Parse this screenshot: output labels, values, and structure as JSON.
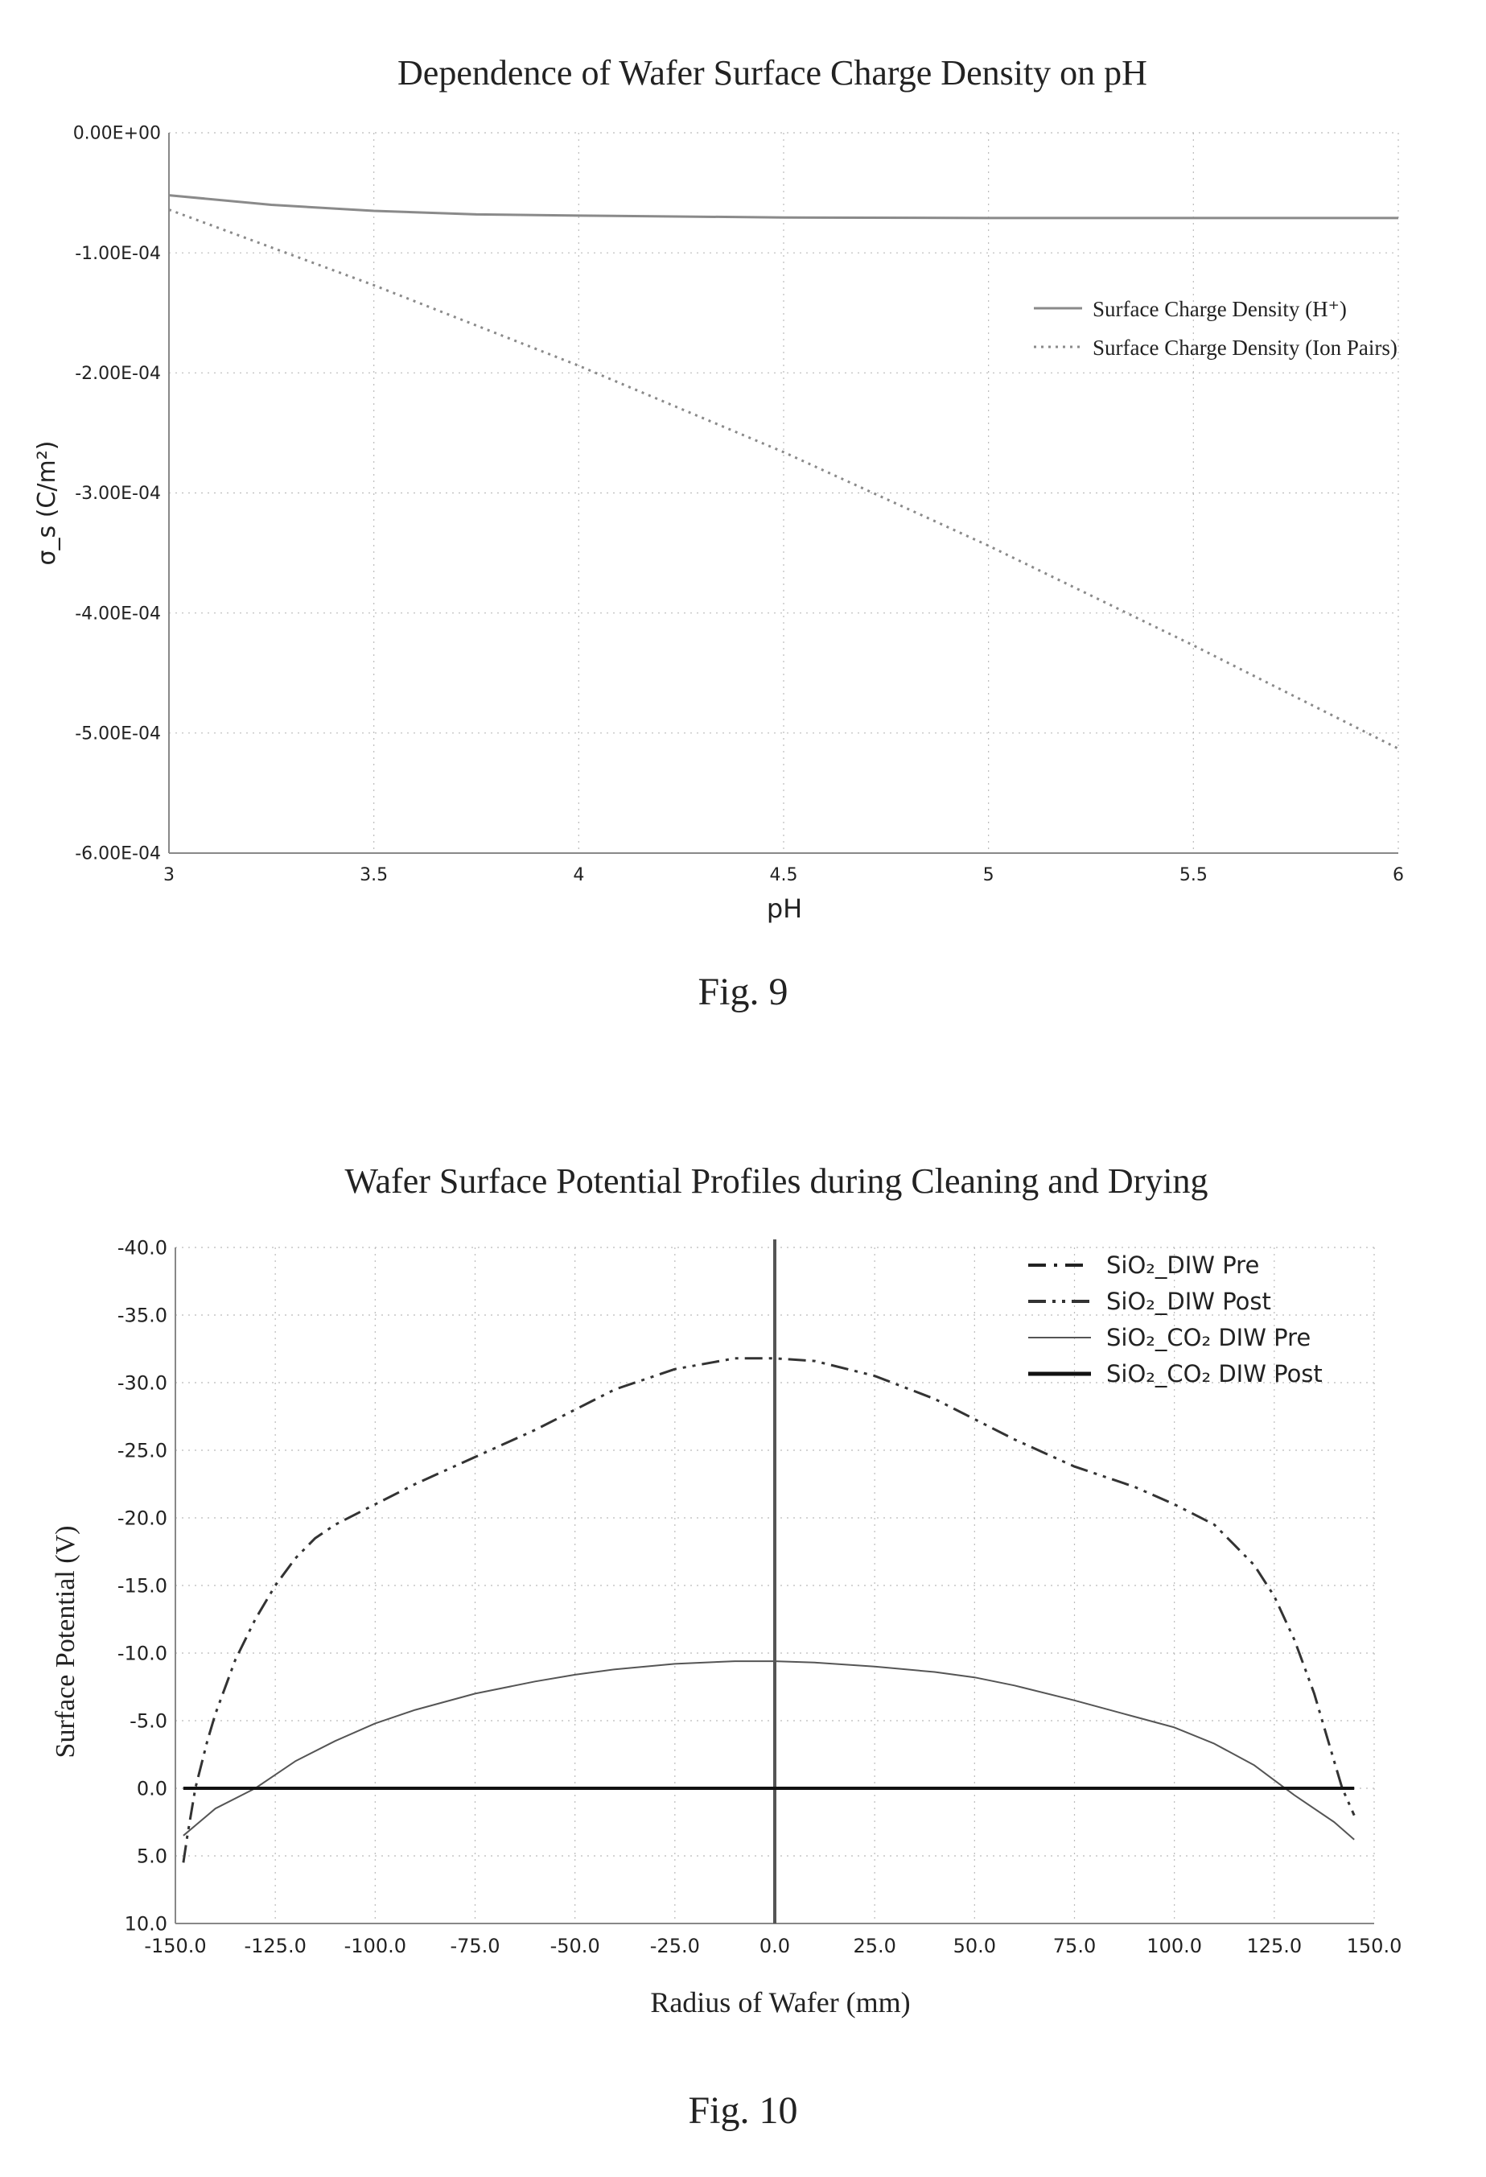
{
  "figures": [
    {
      "caption": "Fig. 9",
      "chart_data": {
        "type": "line",
        "title": "Dependence of Wafer Surface Charge Density on pH",
        "xlabel": "pH",
        "ylabel": "σ_s (C/m²)",
        "xlim": [
          3,
          6
        ],
        "ylim": [
          -0.0006,
          0
        ],
        "x_ticks": [
          "3",
          "3.5",
          "4",
          "4.5",
          "5",
          "5.5",
          "6"
        ],
        "y_ticks": [
          "0.00E+00",
          "-1.00E-04",
          "-2.00E-04",
          "-3.00E-04",
          "-4.00E-04",
          "-5.00E-04",
          "-6.00E-04"
        ],
        "y_tick_values": [
          0,
          -0.0001,
          -0.0002,
          -0.0003,
          -0.0004,
          -0.0005,
          -0.0006
        ],
        "grid": true,
        "legend_position": "right",
        "series": [
          {
            "name": "Surface Charge Density (H⁺)",
            "style": "solid",
            "color": "#8a8a8a",
            "x": [
              3,
              3.25,
              3.5,
              3.75,
              4,
              4.5,
              5,
              5.5,
              6
            ],
            "y": [
              -5.2e-05,
              -6e-05,
              -6.5e-05,
              -6.8e-05,
              -6.9e-05,
              -7.05e-05,
              -7.1e-05,
              -7.1e-05,
              -7.1e-05
            ]
          },
          {
            "name": "Surface Charge Density (Ion Pairs)",
            "style": "dotted",
            "color": "#8a8a8a",
            "x": [
              3,
              3.5,
              4,
              4.5,
              5,
              5.5,
              6
            ],
            "y": [
              -6.4e-05,
              -0.000127,
              -0.000194,
              -0.000266,
              -0.000344,
              -0.000427,
              -0.000513
            ]
          }
        ]
      }
    },
    {
      "caption": "Fig. 10",
      "chart_data": {
        "type": "line",
        "title": "Wafer Surface Potential Profiles during Cleaning and Drying",
        "xlabel": "Radius of Wafer (mm)",
        "ylabel": "Surface Potential (V)",
        "xlim": [
          -150,
          150
        ],
        "ylim": [
          10,
          -40
        ],
        "y_inverted": true,
        "x_ticks": [
          "-150.0",
          "-125.0",
          "-100.0",
          "-75.0",
          "-50.0",
          "-25.0",
          "0.0",
          "25.0",
          "50.0",
          "75.0",
          "100.0",
          "125.0",
          "150.0"
        ],
        "x_tick_values": [
          -150,
          -125,
          -100,
          -75,
          -50,
          -25,
          0,
          25,
          50,
          75,
          100,
          125,
          150
        ],
        "y_ticks": [
          "-40.0",
          "-35.0",
          "-30.0",
          "-25.0",
          "-20.0",
          "-15.0",
          "-10.0",
          "-5.0",
          "0.0",
          "5.0",
          "10.0"
        ],
        "y_tick_values": [
          -40,
          -35,
          -30,
          -25,
          -20,
          -15,
          -10,
          -5,
          0,
          5,
          10
        ],
        "grid": true,
        "legend_position": "top-right",
        "series": [
          {
            "name": "SiO₂_DIW Pre",
            "style": "dashdot",
            "color": "#222222",
            "x": [
              -148,
              0,
              145
            ],
            "y": [
              0,
              0,
              0
            ]
          },
          {
            "name": "SiO₂_DIW Post",
            "style": "dashdotdot",
            "color": "#333333",
            "x": [
              -148,
              -147,
              -145,
              -142,
              -140,
              -135,
              -130,
              -125,
              -120,
              -115,
              -110,
              -100,
              -90,
              -75,
              -60,
              -50,
              -40,
              -25,
              -10,
              0,
              10,
              25,
              40,
              50,
              60,
              75,
              90,
              100,
              110,
              115,
              120,
              125,
              130,
              135,
              140,
              142,
              145
            ],
            "y": [
              5.5,
              3.5,
              0,
              -3.5,
              -5.5,
              -9.5,
              -12.5,
              -15,
              -17,
              -18.5,
              -19.5,
              -21,
              -22.5,
              -24.5,
              -26.5,
              -28,
              -29.5,
              -31,
              -31.8,
              -31.8,
              -31.6,
              -30.5,
              -28.8,
              -27.3,
              -25.8,
              -23.8,
              -22.3,
              -21,
              -19.5,
              -18,
              -16.5,
              -14.2,
              -11,
              -7,
              -2,
              0,
              2
            ]
          },
          {
            "name": "SiO₂_CO₂ DIW Pre",
            "style": "solid-thin",
            "color": "#555555",
            "x": [
              -148,
              -140,
              -130,
              -125,
              -120,
              -110,
              -100,
              -90,
              -75,
              -60,
              -50,
              -40,
              -25,
              -10,
              0,
              10,
              25,
              40,
              50,
              60,
              75,
              90,
              100,
              110,
              120,
              125,
              130,
              140,
              145
            ],
            "y": [
              3.5,
              1.5,
              0,
              -1,
              -2,
              -3.5,
              -4.8,
              -5.8,
              -7,
              -7.9,
              -8.4,
              -8.8,
              -9.2,
              -9.4,
              -9.4,
              -9.3,
              -9,
              -8.6,
              -8.2,
              -7.6,
              -6.5,
              -5.3,
              -4.5,
              -3.3,
              -1.7,
              -0.6,
              0.5,
              2.5,
              3.8
            ]
          },
          {
            "name": "SiO₂_CO₂ DIW Post",
            "style": "solid-thick",
            "color": "#111111",
            "x": [
              -148,
              0,
              145
            ],
            "y": [
              0,
              0,
              0
            ]
          }
        ]
      }
    }
  ]
}
